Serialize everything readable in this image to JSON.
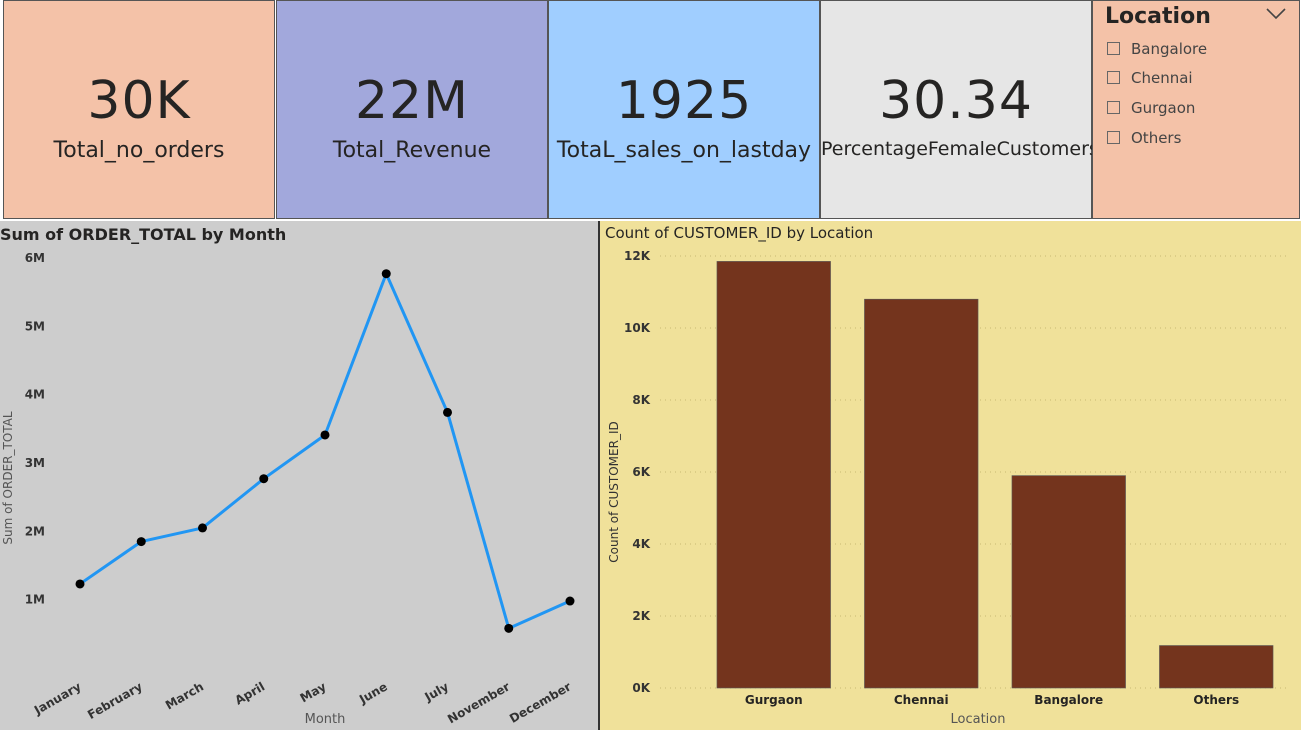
{
  "kpi_cards": [
    {
      "value": "30K",
      "label": "Total_no_orders",
      "color": "#F4C2A8"
    },
    {
      "value": "22M",
      "label": "Total_Revenue",
      "color": "#A2A8DC"
    },
    {
      "value": "1925",
      "label": "TotaL_sales_on_lastday",
      "color": "#A0CEFF"
    },
    {
      "value": "30.34",
      "label": "PercentageFemaleCustomers",
      "color": "#E6E6E6"
    }
  ],
  "slicer": {
    "title": "Location",
    "color": "#F4C2A8",
    "icon": "chevron-down-icon",
    "options": [
      "Bangalore",
      "Chennai",
      "Gurgaon",
      "Others"
    ]
  },
  "chart_data": [
    {
      "type": "line",
      "title": "Sum of ORDER_TOTAL by Month",
      "xlabel": "Month",
      "ylabel": "Sum of ORDER_TOTAL",
      "categories": [
        "January",
        "February",
        "March",
        "April",
        "May",
        "June",
        "July",
        "November",
        "December"
      ],
      "values": [
        1230000,
        1850000,
        2050000,
        2770000,
        3410000,
        5770000,
        3740000,
        580000,
        980000
      ],
      "ylim": [
        0,
        6000000
      ],
      "yticks": [
        1000000,
        2000000,
        3000000,
        4000000,
        5000000,
        6000000
      ],
      "ytick_labels": [
        "1M",
        "2M",
        "3M",
        "4M",
        "5M",
        "6M"
      ],
      "line_color": "#2196F3",
      "marker_color": "#000000",
      "background": "#CDCDCD",
      "grid": false
    },
    {
      "type": "bar",
      "title": "Count of CUSTOMER_ID by Location",
      "xlabel": "Location",
      "ylabel": "Count of CUSTOMER_ID",
      "categories": [
        "Gurgaon",
        "Chennai",
        "Bangalore",
        "Others"
      ],
      "values": [
        11850,
        10800,
        5900,
        1180
      ],
      "ylim": [
        0,
        12000
      ],
      "yticks": [
        0,
        2000,
        4000,
        6000,
        8000,
        10000,
        12000
      ],
      "ytick_labels": [
        "0K",
        "2K",
        "4K",
        "6K",
        "8K",
        "10K",
        "12K"
      ],
      "bar_color": "#74341D",
      "background": "#F0E19A",
      "grid": true
    }
  ]
}
